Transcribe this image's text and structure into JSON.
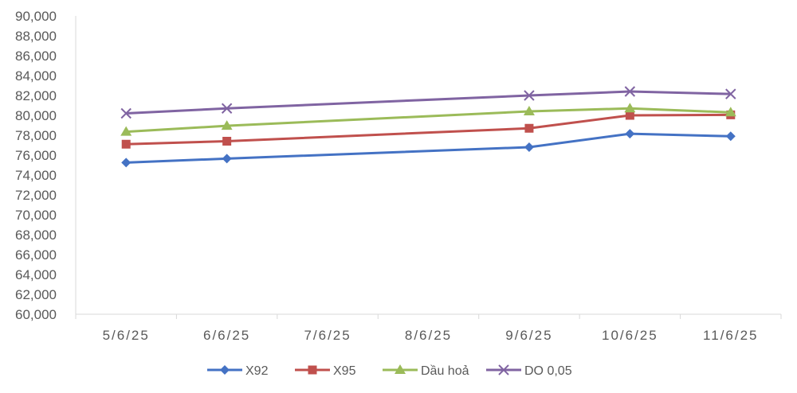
{
  "chart_data": {
    "type": "line",
    "categories": [
      "5/6/25",
      "6/6/25",
      "7/6/25",
      "8/6/25",
      "9/6/25",
      "10/6/25",
      "11/6/25"
    ],
    "ylim": [
      60000,
      90000
    ],
    "ytick_step": 2000,
    "yticks": [
      "60,000",
      "62,000",
      "64,000",
      "66,000",
      "68,000",
      "70,000",
      "72,000",
      "74,000",
      "76,000",
      "78,000",
      "80,000",
      "82,000",
      "84,000",
      "86,000",
      "88,000",
      "90,000"
    ],
    "grid": false,
    "legend_position": "bottom",
    "series": [
      {
        "name": "X92",
        "color": "#4472C4",
        "marker": "diamond",
        "values": [
          75250,
          75650,
          null,
          null,
          76800,
          78150,
          77900
        ]
      },
      {
        "name": "X95",
        "color": "#C0504D",
        "marker": "square",
        "values": [
          77100,
          77400,
          null,
          null,
          78700,
          80000,
          80050
        ]
      },
      {
        "name": "Dầu hoả",
        "color": "#9BBB59",
        "marker": "triangle",
        "values": [
          78350,
          78950,
          null,
          null,
          80400,
          80700,
          80300
        ]
      },
      {
        "name": "DO 0,05",
        "color": "#8064A2",
        "marker": "x",
        "values": [
          80200,
          80700,
          null,
          null,
          82000,
          82400,
          82150
        ]
      }
    ]
  }
}
